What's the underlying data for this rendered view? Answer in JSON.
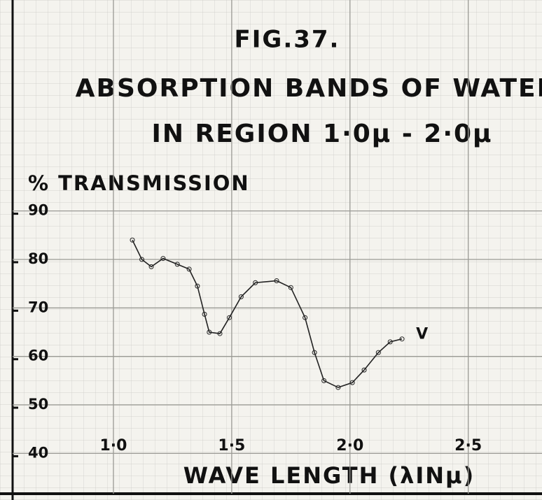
{
  "chart_data": {
    "type": "line",
    "title": "FIG.37.",
    "subtitle": [
      "ABSORPTION BANDS OF WATER",
      "IN REGION 1·0μ - 2·0μ"
    ],
    "y_label": "% TRANSMISSION",
    "x_label": "WAVE LENGTH (λINμ)",
    "annotation": "V",
    "xlim": [
      0.55,
      2.8
    ],
    "ylim": [
      34,
      96
    ],
    "xticks": [
      {
        "value": 1.0,
        "label": "1·0"
      },
      {
        "value": 1.5,
        "label": "1·5"
      },
      {
        "value": 2.0,
        "label": "2·0"
      },
      {
        "value": 2.5,
        "label": "2·5"
      }
    ],
    "yticks": [
      40,
      50,
      60,
      70,
      80,
      90
    ],
    "grid": true,
    "markers": true,
    "x": [
      1.08,
      1.12,
      1.16,
      1.21,
      1.27,
      1.32,
      1.355,
      1.385,
      1.405,
      1.45,
      1.49,
      1.54,
      1.6,
      1.69,
      1.75,
      1.81,
      1.85,
      1.89,
      1.95,
      2.01,
      2.06,
      2.12,
      2.17,
      2.22
    ],
    "series": [
      {
        "name": "V",
        "color": "#222222",
        "values": [
          84,
          80,
          78.5,
          80.2,
          79,
          78,
          74.5,
          68.7,
          65,
          64.7,
          68,
          72.3,
          75.2,
          75.6,
          74.2,
          68,
          60.8,
          55,
          53.6,
          54.6,
          57.2,
          60.8,
          63,
          63.6
        ]
      }
    ]
  }
}
